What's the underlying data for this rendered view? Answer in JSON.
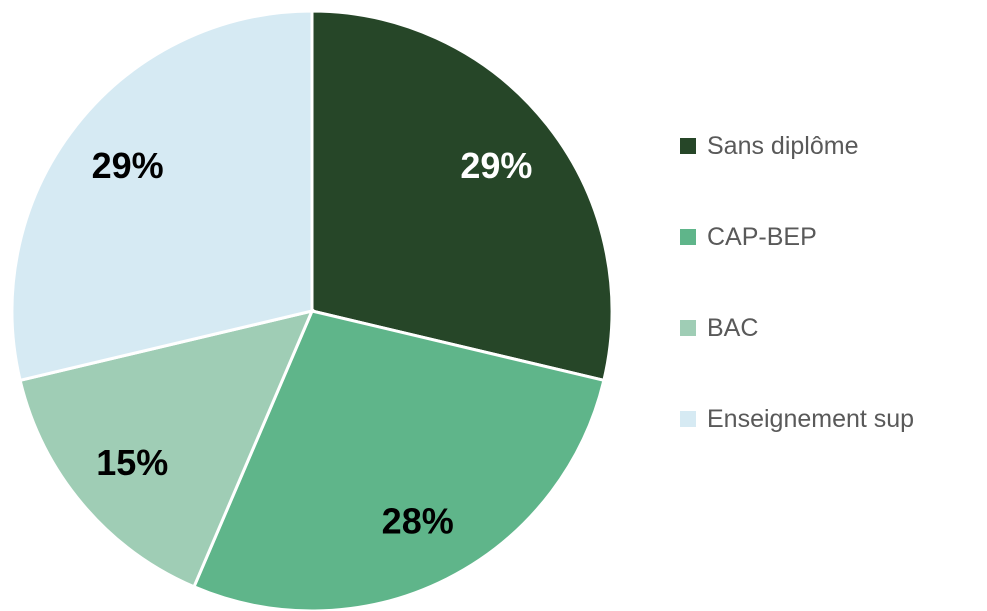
{
  "chart_data": {
    "type": "pie",
    "categories": [
      "Sans diplôme",
      "CAP-BEP",
      "BAC",
      "Enseignement sup"
    ],
    "values": [
      29,
      28,
      15,
      29
    ],
    "value_labels": [
      "29%",
      "28%",
      "15%",
      "29%"
    ],
    "colors": [
      "#264628",
      "#5fb58a",
      "#9fcdb5",
      "#d6eaf3"
    ],
    "legend": "right"
  }
}
